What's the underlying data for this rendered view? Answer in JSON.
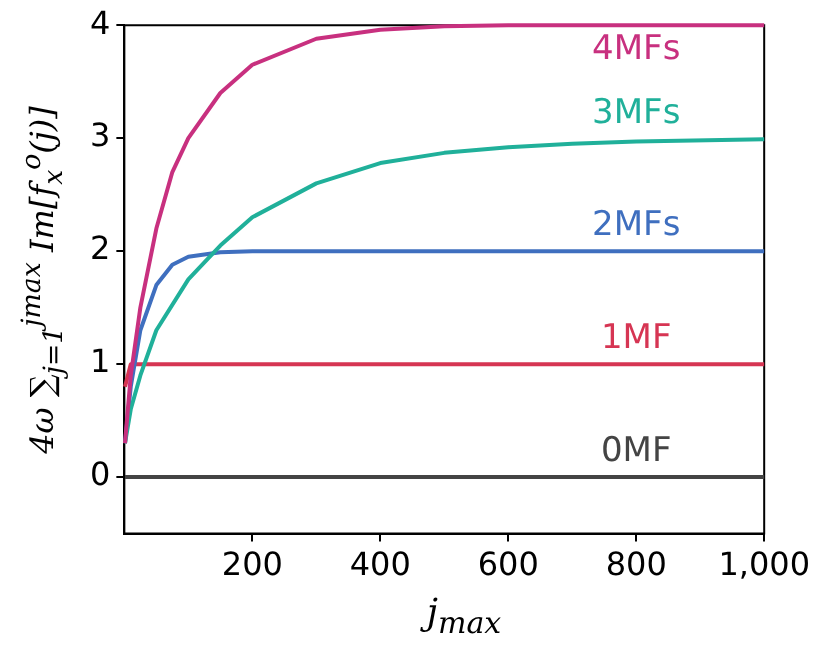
{
  "chart_data": {
    "type": "line",
    "xlabel": "j$_{max}$",
    "ylabel": "4ω ∑$_{j=1}$$^{jmax}$ Im[f$_{x}$$^{o}$(j)]",
    "xlim": [
      0,
      1000
    ],
    "ylim": [
      -0.5,
      4
    ],
    "xticks": [
      200,
      400,
      600,
      800,
      {
        "value": 1000,
        "label": "1,000"
      }
    ],
    "yticks": [
      0,
      1,
      2,
      3,
      4
    ],
    "grid": false,
    "legend": false,
    "marker": "none",
    "line_style": "solid",
    "series": [
      {
        "name": "4MFs",
        "color": "#c8307f",
        "x": [
          1,
          10,
          25,
          50,
          75,
          100,
          150,
          200,
          300,
          400,
          500,
          600,
          800,
          1000
        ],
        "values": [
          0.3,
          0.9,
          1.5,
          2.2,
          2.7,
          3.0,
          3.4,
          3.65,
          3.88,
          3.96,
          3.99,
          4,
          4,
          4
        ]
      },
      {
        "name": "3MFs",
        "color": "#20b09a",
        "x": [
          1,
          10,
          25,
          50,
          100,
          150,
          200,
          300,
          400,
          500,
          600,
          700,
          800,
          1000
        ],
        "values": [
          0.3,
          0.6,
          0.9,
          1.3,
          1.75,
          2.05,
          2.3,
          2.6,
          2.78,
          2.87,
          2.92,
          2.95,
          2.97,
          2.99
        ]
      },
      {
        "name": "2MFs",
        "color": "#3f6fbf",
        "x": [
          1,
          10,
          25,
          50,
          75,
          100,
          150,
          200,
          1000
        ],
        "values": [
          0.3,
          0.8,
          1.3,
          1.7,
          1.88,
          1.95,
          1.99,
          2,
          2
        ]
      },
      {
        "name": "1MF",
        "color": "#d63553",
        "x": [
          1,
          10,
          1000
        ],
        "values": [
          0.8,
          1,
          1
        ]
      },
      {
        "name": "0MF",
        "color": "#444444",
        "x": [
          1,
          1000
        ],
        "values": [
          0,
          0
        ]
      }
    ]
  }
}
